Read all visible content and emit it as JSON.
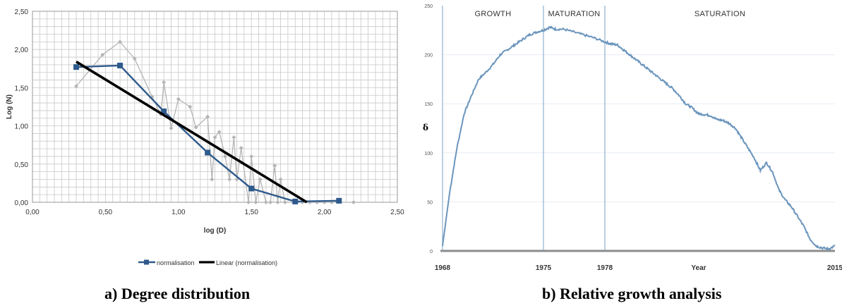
{
  "captions": {
    "a": "a)   Degree distribution",
    "b": "b) Relative growth analysis"
  },
  "chart_data": [
    {
      "type": "line",
      "xlabel": "log (D)",
      "ylabel": "Log (N)",
      "xlim": [
        0,
        2.5
      ],
      "ylim": [
        0,
        2.5
      ],
      "x_ticks": [
        "0,00",
        "0,50",
        "1,00",
        "1,50",
        "2,00",
        "2,50"
      ],
      "y_ticks": [
        "0,00",
        "0,50",
        "1,00",
        "1,50",
        "2,00",
        "2,50"
      ],
      "grid": true,
      "legend_position": "bottom",
      "colors": {
        "normalisation": "#2e5a8c",
        "linear": "#000000",
        "raw": "#b5b5b5",
        "grid": "#c8c8c8"
      },
      "series": [
        {
          "name": "",
          "role": "raw",
          "x": [
            0.3,
            0.48,
            0.6,
            0.7,
            0.82,
            0.88,
            0.9,
            0.95,
            1.0,
            1.08,
            1.12,
            1.2,
            1.23,
            1.25,
            1.28,
            1.32,
            1.35,
            1.38,
            1.4,
            1.43,
            1.48,
            1.5,
            1.53,
            1.56,
            1.6,
            1.63,
            1.66,
            1.68,
            1.7,
            1.73,
            1.8,
            1.85,
            1.9,
            1.95,
            2.0,
            2.05,
            2.2
          ],
          "y": [
            1.52,
            1.93,
            2.1,
            1.88,
            1.38,
            1.15,
            1.57,
            0.97,
            1.35,
            1.25,
            0.98,
            1.12,
            0.3,
            0.85,
            0.92,
            0.6,
            0.3,
            0.85,
            0.3,
            0.71,
            0.0,
            0.6,
            0.0,
            0.3,
            0.0,
            0.0,
            0.48,
            0.0,
            0.3,
            0.0,
            0.0,
            0.0,
            0.0,
            0.0,
            0.0,
            0.0,
            0.0
          ]
        },
        {
          "name": "normalisation",
          "role": "normalisation",
          "x": [
            0.3,
            0.6,
            0.9,
            1.2,
            1.5,
            1.8,
            2.1
          ],
          "y": [
            1.77,
            1.79,
            1.19,
            0.65,
            0.18,
            0.01,
            0.02
          ]
        },
        {
          "name": "Linear  (normalisation)",
          "role": "linear",
          "x": [
            0.3,
            1.88
          ],
          "y": [
            1.84,
            0.0
          ]
        }
      ]
    },
    {
      "type": "line",
      "xlabel": "Year",
      "ylabel": "δ",
      "xlim": [
        1968,
        2015
      ],
      "ylim": [
        0,
        250
      ],
      "x_ticks": [
        "1968",
        "1975",
        "1978",
        "2015"
      ],
      "y_ticks": [
        "0",
        "50",
        "100",
        "150",
        "200",
        "250"
      ],
      "phases": [
        {
          "label": "GROWTH",
          "start": 1968,
          "end": 1975
        },
        {
          "label": "MATURATION",
          "start": 1975,
          "end": 1978
        },
        {
          "label": "SATURATION",
          "start": 1978,
          "end": 2015
        }
      ],
      "colors": {
        "line": "#6b95bd",
        "divider": "#8fb0cf",
        "axis": "#8c8c8c"
      },
      "series": [
        {
          "name": "",
          "x": [
            1968,
            1968.5,
            1969,
            1969.5,
            1970,
            1970.5,
            1971,
            1971.5,
            1972,
            1972.5,
            1973,
            1973.5,
            1974,
            1974.5,
            1975,
            1975.3,
            1975.6,
            1976,
            1976.5,
            1977,
            1977.5,
            1978,
            1979,
            1980,
            1981,
            1982,
            1983,
            1984,
            1985,
            1986,
            1987,
            1988,
            1989,
            1990,
            1991,
            1992,
            1993,
            1994,
            1995,
            1996,
            1997,
            1998,
            1999,
            2000,
            2001,
            2002,
            2003,
            2004,
            2005,
            2006,
            2007,
            2008,
            2009,
            2010,
            2011,
            2012,
            2013,
            2014,
            2015
          ],
          "y": [
            5,
            60,
            105,
            140,
            158,
            175,
            182,
            190,
            200,
            205,
            210,
            215,
            220,
            223,
            225,
            228,
            226,
            226,
            223,
            220,
            217,
            213,
            211,
            210,
            205,
            200,
            195,
            190,
            185,
            180,
            175,
            170,
            165,
            158,
            150,
            146,
            140,
            139,
            138,
            134,
            133,
            130,
            125,
            115,
            105,
            95,
            82,
            90,
            80,
            62,
            52,
            45,
            35,
            25,
            12,
            5,
            3,
            2,
            5
          ]
        }
      ]
    }
  ]
}
